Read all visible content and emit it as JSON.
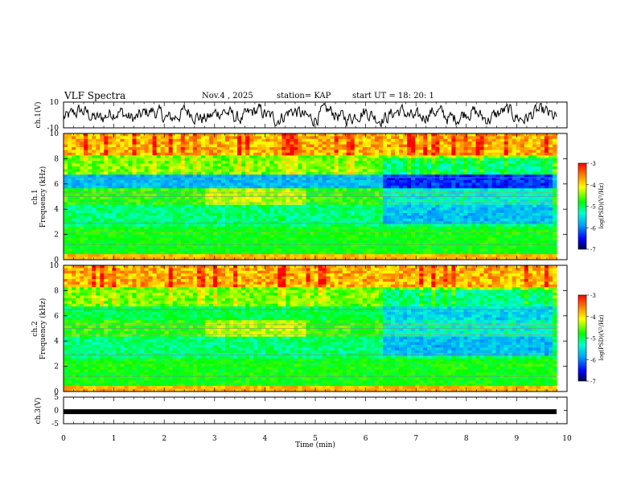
{
  "header": {
    "title": "VLF Spectra",
    "date": "Nov.4 , 2025",
    "station": "station= KAP",
    "start": "start UT = 18: 20: 1"
  },
  "chart_data": [
    {
      "type": "line",
      "name": "ch1-waveform",
      "ylabel": "ch.1(V)",
      "ylim": [
        -10,
        10
      ],
      "ytick_labels": [
        "10",
        "-10"
      ],
      "xlim": [
        0,
        10
      ]
    },
    {
      "type": "heatmap",
      "name": "ch1-spectrogram",
      "ylabel_line1": "ch.1",
      "ylabel_line2": "Frequency (kHz)",
      "ylim": [
        0,
        10
      ],
      "ytick_labels": [
        "0",
        "2",
        "4",
        "6",
        "8",
        "10"
      ],
      "xlim": [
        0,
        10
      ],
      "colorbar": {
        "label": "log(PSD)(V²/Hz)",
        "range": [
          -7,
          -3
        ],
        "tick_labels": [
          "-3",
          "-4",
          "-5",
          "-6",
          "-7"
        ]
      }
    },
    {
      "type": "heatmap",
      "name": "ch2-spectrogram",
      "ylabel_line1": "ch.2",
      "ylabel_line2": "Frequency (kHz)",
      "ylim": [
        0,
        10
      ],
      "ytick_labels": [
        "0",
        "2",
        "4",
        "6",
        "8",
        "10"
      ],
      "xlim": [
        0,
        10
      ],
      "colorbar": {
        "label": "log(PSD)(V²/Hz)",
        "range": [
          -7,
          -3
        ],
        "tick_labels": [
          "-3",
          "-4",
          "-5",
          "-6",
          "-7"
        ]
      }
    },
    {
      "type": "line",
      "name": "ch3-signal",
      "ylabel": "ch.3(V)",
      "ylim": [
        -5,
        5
      ],
      "ytick_labels": [
        "5",
        "0",
        "-5"
      ],
      "xlim": [
        0,
        10
      ],
      "constant_value": -0.5,
      "xlabel": "Time (min)",
      "xtick_labels": [
        "0",
        "1",
        "2",
        "3",
        "4",
        "5",
        "6",
        "7",
        "8",
        "9",
        "10"
      ]
    }
  ]
}
